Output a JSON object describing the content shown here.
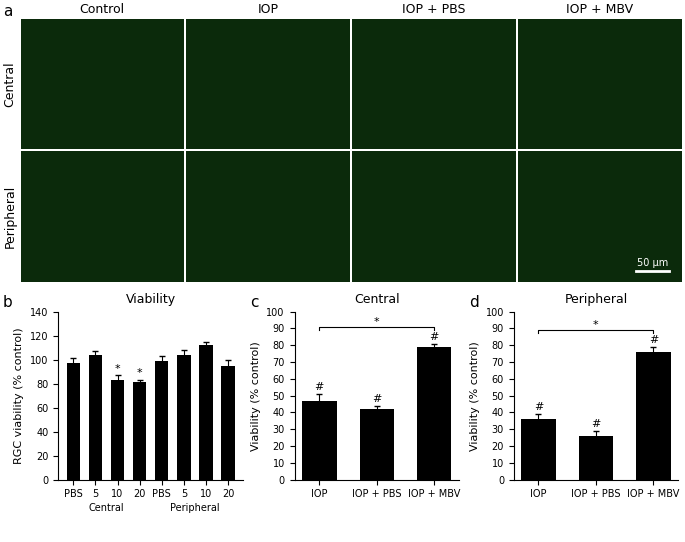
{
  "panel_a": {
    "panel_label": "a",
    "columns": [
      "Control",
      "IOP",
      "IOP + PBS",
      "IOP + MBV"
    ],
    "rows": [
      "Central",
      "Peripheral"
    ],
    "scale_bar": "50 µm"
  },
  "chart_data": [
    {
      "type": "bar",
      "panel_label": "b",
      "title": "Viability",
      "ylabel": "RGC viability (% control)",
      "categories": [
        "PBS",
        "5",
        "10",
        "20",
        "PBS",
        "5",
        "10",
        "20"
      ],
      "groups": [
        "Central",
        "Central",
        "Central",
        "Central",
        "Peripheral",
        "Peripheral",
        "Peripheral",
        "Peripheral"
      ],
      "values": [
        97,
        104,
        83,
        81,
        99,
        104,
        112,
        95
      ],
      "errors": [
        4,
        3,
        4,
        2,
        4,
        4,
        3,
        5
      ],
      "significance": [
        null,
        null,
        "*",
        "*",
        null,
        null,
        null,
        null
      ],
      "color": "#000000",
      "ylim": [
        0,
        140
      ],
      "yticks": [
        0,
        20,
        40,
        60,
        80,
        100,
        120,
        140
      ]
    },
    {
      "type": "bar",
      "panel_label": "c",
      "title": "Central",
      "ylabel": "Viability (% control)",
      "categories": [
        "IOP",
        "IOP + PBS",
        "IOP + MBV"
      ],
      "values": [
        47,
        42,
        79
      ],
      "errors": [
        4,
        2,
        2
      ],
      "significance": [
        "#",
        "#",
        "#"
      ],
      "comparisons": [
        {
          "from": "IOP",
          "to": "IOP + MBV",
          "label": "*"
        }
      ],
      "color": "#000000",
      "ylim": [
        0,
        100
      ],
      "yticks": [
        0,
        10,
        20,
        30,
        40,
        50,
        60,
        70,
        80,
        90,
        100
      ]
    },
    {
      "type": "bar",
      "panel_label": "d",
      "title": "Peripheral",
      "ylabel": "Viability (% control)",
      "categories": [
        "IOP",
        "IOP + PBS",
        "IOP + MBV"
      ],
      "values": [
        36,
        26,
        76
      ],
      "errors": [
        3,
        3,
        3
      ],
      "significance": [
        "#",
        "#",
        "#"
      ],
      "comparisons": [
        {
          "from": "IOP",
          "to": "IOP + MBV",
          "label": "*"
        }
      ],
      "color": "#000000",
      "ylim": [
        0,
        100
      ],
      "yticks": [
        0,
        10,
        20,
        30,
        40,
        50,
        60,
        70,
        80,
        90,
        100
      ]
    }
  ]
}
